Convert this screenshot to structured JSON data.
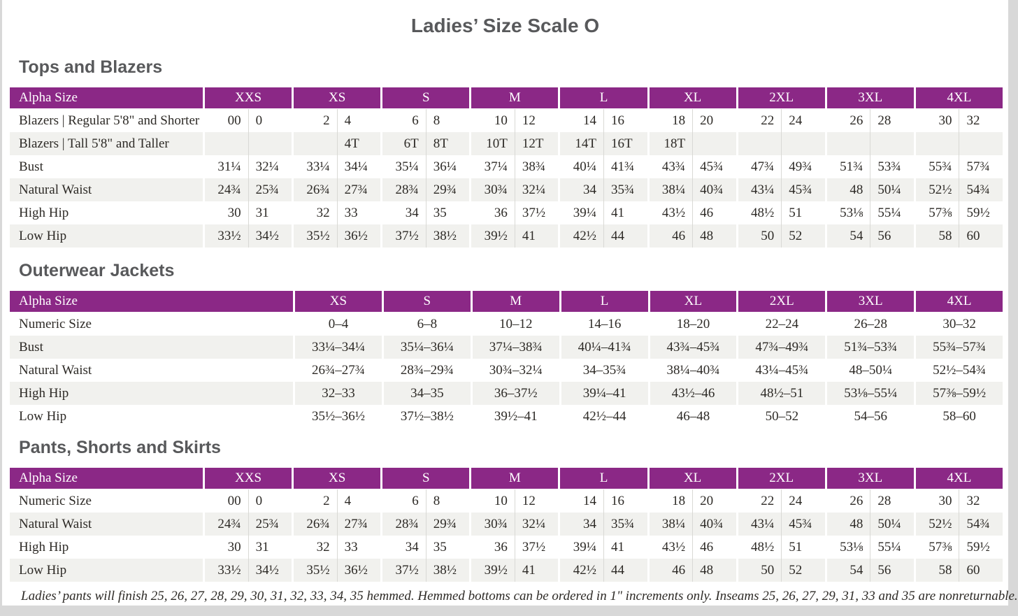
{
  "page_title": "Ladies’ Size Scale O",
  "footnote": "Ladies’ pants will finish 25, 26, 27, 28, 29, 30, 31, 32, 33, 34, 35 hemmed. Hemmed bottoms can be ordered in 1\" increments only. Inseams 25, 26, 27, 29, 31, 33 and 35 are nonreturnable.",
  "colors": {
    "header_purple": "#8b2886",
    "row_alt_gray": "#f1f1ee",
    "divider_gray": "#d9d9d5",
    "heading_gray": "#58595b",
    "page_background": "#ffffff",
    "outer_background": "#d8d8d8"
  },
  "sections": [
    {
      "heading": "Tops and Blazers",
      "layout": "paired",
      "header_label": "Alpha Size",
      "alpha_sizes": [
        "XXS",
        "XS",
        "S",
        "M",
        "L",
        "XL",
        "2XL",
        "3XL",
        "4XL"
      ],
      "rows": [
        {
          "label": "Blazers | Regular 5'8\" and Shorter",
          "values": [
            "00",
            "0",
            "2",
            "4",
            "6",
            "8",
            "10",
            "12",
            "14",
            "16",
            "18",
            "20",
            "22",
            "24",
            "26",
            "28",
            "30",
            "32"
          ]
        },
        {
          "label": "Blazers | Tall 5'8\" and Taller",
          "values": [
            "",
            "",
            "",
            "4T",
            "6T",
            "8T",
            "10T",
            "12T",
            "14T",
            "16T",
            "18T",
            "",
            "",
            "",
            "",
            "",
            "",
            ""
          ]
        },
        {
          "label": "Bust",
          "values": [
            "31¼",
            "32¼",
            "33¼",
            "34¼",
            "35¼",
            "36¼",
            "37¼",
            "38¾",
            "40¼",
            "41¾",
            "43¾",
            "45¾",
            "47¾",
            "49¾",
            "51¾",
            "53¾",
            "55¾",
            "57¾"
          ]
        },
        {
          "label": "Natural Waist",
          "values": [
            "24¾",
            "25¾",
            "26¾",
            "27¾",
            "28¾",
            "29¾",
            "30¾",
            "32¼",
            "34",
            "35¾",
            "38¼",
            "40¾",
            "43¼",
            "45¾",
            "48",
            "50¼",
            "52½",
            "54¾"
          ]
        },
        {
          "label": "High Hip",
          "values": [
            "30",
            "31",
            "32",
            "33",
            "34",
            "35",
            "36",
            "37½",
            "39¼",
            "41",
            "43½",
            "46",
            "48½",
            "51",
            "53⅛",
            "55¼",
            "57⅜",
            "59½"
          ]
        },
        {
          "label": "Low Hip",
          "values": [
            "33½",
            "34½",
            "35½",
            "36½",
            "37½",
            "38½",
            "39½",
            "41",
            "42½",
            "44",
            "46",
            "48",
            "50",
            "52",
            "54",
            "56",
            "58",
            "60"
          ]
        }
      ]
    },
    {
      "heading": "Outerwear Jackets",
      "layout": "single",
      "header_label": "Alpha Size",
      "alpha_sizes": [
        "XS",
        "S",
        "M",
        "L",
        "XL",
        "2XL",
        "3XL",
        "4XL"
      ],
      "rows": [
        {
          "label": "Numeric Size",
          "values": [
            "0–4",
            "6–8",
            "10–12",
            "14–16",
            "18–20",
            "22–24",
            "26–28",
            "30–32"
          ]
        },
        {
          "label": "Bust",
          "values": [
            "33¼–34¼",
            "35¼–36¼",
            "37¼–38¾",
            "40¼–41¾",
            "43¾–45¾",
            "47¾–49¾",
            "51¾–53¾",
            "55¾–57¾"
          ]
        },
        {
          "label": "Natural Waist",
          "values": [
            "26¾–27¾",
            "28¾–29¾",
            "30¾–32¼",
            "34–35¾",
            "38¼–40¾",
            "43¼–45¾",
            "48–50¼",
            "52½–54¾"
          ]
        },
        {
          "label": "High Hip",
          "values": [
            "32–33",
            "34–35",
            "36–37½",
            "39¼–41",
            "43½–46",
            "48½–51",
            "53⅛–55¼",
            "57⅜–59½"
          ]
        },
        {
          "label": "Low Hip",
          "values": [
            "35½–36½",
            "37½–38½",
            "39½–41",
            "42½–44",
            "46–48",
            "50–52",
            "54–56",
            "58–60"
          ]
        }
      ]
    },
    {
      "heading": "Pants, Shorts and Skirts",
      "layout": "paired",
      "header_label": "Alpha Size",
      "alpha_sizes": [
        "XXS",
        "XS",
        "S",
        "M",
        "L",
        "XL",
        "2XL",
        "3XL",
        "4XL"
      ],
      "rows": [
        {
          "label": "Numeric Size",
          "values": [
            "00",
            "0",
            "2",
            "4",
            "6",
            "8",
            "10",
            "12",
            "14",
            "16",
            "18",
            "20",
            "22",
            "24",
            "26",
            "28",
            "30",
            "32"
          ]
        },
        {
          "label": "Natural Waist",
          "values": [
            "24¾",
            "25¾",
            "26¾",
            "27¾",
            "28¾",
            "29¾",
            "30¾",
            "32¼",
            "34",
            "35¾",
            "38¼",
            "40¾",
            "43¼",
            "45¾",
            "48",
            "50¼",
            "52½",
            "54¾"
          ]
        },
        {
          "label": "High Hip",
          "values": [
            "30",
            "31",
            "32",
            "33",
            "34",
            "35",
            "36",
            "37½",
            "39¼",
            "41",
            "43½",
            "46",
            "48½",
            "51",
            "53⅛",
            "55¼",
            "57⅜",
            "59½"
          ]
        },
        {
          "label": "Low Hip",
          "values": [
            "33½",
            "34½",
            "35½",
            "36½",
            "37½",
            "38½",
            "39½",
            "41",
            "42½",
            "44",
            "46",
            "48",
            "50",
            "52",
            "54",
            "56",
            "58",
            "60"
          ]
        }
      ]
    }
  ]
}
